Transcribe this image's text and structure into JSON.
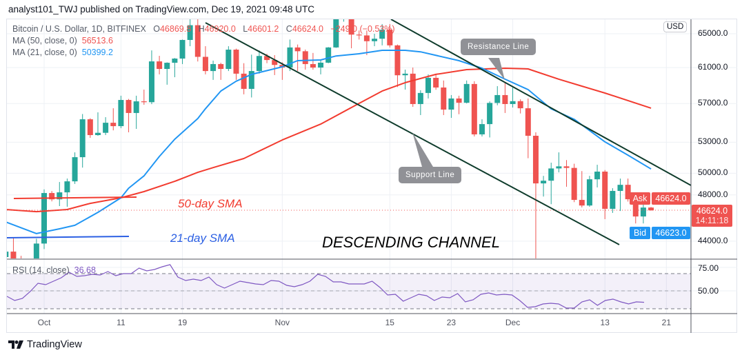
{
  "header": {
    "text": "analyst101_TWJ published on TradingView.com, Dec 19, 2021 09:48 UTC"
  },
  "legend": {
    "symbol": "Bitcoin / U.S. Dollar, 1D, BITFINEX",
    "o_label": "O",
    "o": "46869.8",
    "h_label": "H",
    "h": "46920.0",
    "l_label": "L",
    "l": "46601.2",
    "c_label": "C",
    "c": "46624.0",
    "change": "−249.0 (−0.53%)",
    "ma50_label": "MA (50, close, 0)",
    "ma50_value": "56513.6",
    "ma21_label": "MA (21, close, 0)",
    "ma21_value": "50399.2",
    "rsi_label": "RSI (14, close)",
    "rsi_value": "36.68"
  },
  "price_axis": {
    "currency": "USD",
    "labels": [
      "65000.0",
      "61000.0",
      "57000.0",
      "53000.0",
      "50000.0",
      "48000.0",
      "44000.0"
    ],
    "ask_label": "Ask",
    "ask_value": "46624.0",
    "last_value": "46624.0",
    "countdown": "14:11:18",
    "bid_label": "Bid",
    "bid_value": "46623.0"
  },
  "rsi_axis": {
    "labels": [
      "75.00",
      "50.00"
    ]
  },
  "time_axis": {
    "labels": [
      {
        "text": "Oct",
        "date": "2021-10-01"
      },
      {
        "text": "11",
        "date": "2021-10-11"
      },
      {
        "text": "19",
        "date": "2021-10-19"
      },
      {
        "text": "Nov",
        "date": "2021-11-01"
      },
      {
        "text": "15",
        "date": "2021-11-15"
      },
      {
        "text": "23",
        "date": "2021-11-23"
      },
      {
        "text": "Dec",
        "date": "2021-12-01"
      },
      {
        "text": "13",
        "date": "2021-12-13"
      },
      {
        "text": "21",
        "date": "2021-12-21"
      }
    ]
  },
  "annotations": {
    "sma50_text": "50-day SMA",
    "sma21_text": "21-day SMA",
    "channel_text": "DESCENDING CHANNEL",
    "resistance_text": "Resistance Line",
    "support_text": "Support Line"
  },
  "footer": {
    "brand": "TradingView"
  },
  "colors": {
    "up": "#26a69a",
    "down": "#ef5350",
    "ma50": "#f23b2f",
    "ma21": "#2196f3",
    "rsi": "#7e57c2",
    "trendline": "#0e3b2b",
    "bid": "#2196f3"
  },
  "chart_data": {
    "type": "candlestick",
    "scale": "log",
    "ylim": [
      42000,
      66700
    ],
    "grid": true,
    "columns": [
      "date",
      "open",
      "high",
      "low",
      "close"
    ],
    "candles": [
      [
        "2021-09-26",
        42700,
        43200,
        42650,
        43140
      ],
      [
        "2021-09-27",
        43140,
        44300,
        41000,
        42000
      ],
      [
        "2021-09-28",
        42000,
        42800,
        40800,
        41000
      ],
      [
        "2021-09-29",
        41000,
        42500,
        40700,
        41500
      ],
      [
        "2021-09-30",
        41500,
        44200,
        41300,
        43800
      ],
      [
        "2021-10-01",
        43800,
        48500,
        43350,
        48170
      ],
      [
        "2021-10-02",
        48170,
        48350,
        47420,
        47600
      ],
      [
        "2021-10-03",
        47600,
        49180,
        47000,
        48230
      ],
      [
        "2021-10-04",
        48230,
        49500,
        46940,
        49240
      ],
      [
        "2021-10-05",
        49240,
        52000,
        49000,
        51530
      ],
      [
        "2021-10-06",
        51530,
        55890,
        50530,
        55340
      ],
      [
        "2021-10-07",
        55340,
        55450,
        53440,
        53720
      ],
      [
        "2021-10-08",
        53720,
        56070,
        53650,
        53950
      ],
      [
        "2021-10-09",
        53950,
        55560,
        53720,
        54980
      ],
      [
        "2021-10-10",
        54980,
        56500,
        54200,
        54630
      ],
      [
        "2021-10-11",
        54630,
        57850,
        54420,
        57390
      ],
      [
        "2021-10-12",
        57390,
        57500,
        54000,
        56000
      ],
      [
        "2021-10-13",
        56000,
        57850,
        54350,
        57240
      ],
      [
        "2021-10-14",
        57240,
        58520,
        56870,
        57150
      ],
      [
        "2021-10-15",
        57150,
        63000,
        56940,
        61710
      ],
      [
        "2021-10-16",
        61710,
        62360,
        60220,
        60840
      ],
      [
        "2021-10-17",
        60840,
        61600,
        59060,
        61550
      ],
      [
        "2021-10-18",
        61550,
        62100,
        59900,
        62040
      ],
      [
        "2021-10-19",
        62040,
        64300,
        61400,
        64250
      ],
      [
        "2021-10-20",
        64250,
        66800,
        63500,
        66060
      ],
      [
        "2021-10-21",
        66060,
        66800,
        61700,
        62240
      ],
      [
        "2021-10-22",
        62240,
        63500,
        60220,
        60600
      ],
      [
        "2021-10-23",
        60600,
        61800,
        59600,
        61400
      ],
      [
        "2021-10-24",
        61400,
        61550,
        59600,
        60840
      ],
      [
        "2021-10-25",
        60840,
        63500,
        60600,
        63090
      ],
      [
        "2021-10-26",
        63090,
        63200,
        59600,
        60300
      ],
      [
        "2021-10-27",
        60300,
        61500,
        58000,
        58600
      ],
      [
        "2021-10-28",
        58600,
        62500,
        57660,
        60600
      ],
      [
        "2021-10-29",
        60600,
        63000,
        60300,
        62340
      ],
      [
        "2021-10-30",
        62340,
        62600,
        61500,
        61870
      ],
      [
        "2021-10-31",
        61870,
        62440,
        60140,
        61300
      ],
      [
        "2021-11-01",
        61300,
        61600,
        59600,
        61000
      ],
      [
        "2021-11-02",
        61000,
        64300,
        60600,
        63350
      ],
      [
        "2021-11-03",
        63350,
        63700,
        60600,
        62900
      ],
      [
        "2021-11-04",
        62900,
        63100,
        60760,
        61400
      ],
      [
        "2021-11-05",
        61400,
        62700,
        60760,
        61000
      ],
      [
        "2021-11-06",
        61000,
        61870,
        60220,
        61560
      ],
      [
        "2021-11-07",
        61560,
        63400,
        61500,
        63350
      ],
      [
        "2021-11-08",
        63350,
        67500,
        63300,
        67000
      ],
      [
        "2021-11-09",
        67000,
        68500,
        66500,
        67500
      ],
      [
        "2021-11-10",
        67500,
        68700,
        63250,
        64900
      ],
      [
        "2021-11-11",
        64900,
        65400,
        64300,
        64800
      ],
      [
        "2021-11-12",
        64800,
        65400,
        62440,
        64100
      ],
      [
        "2021-11-13",
        64100,
        65000,
        63500,
        64400
      ],
      [
        "2021-11-14",
        64400,
        66200,
        63600,
        65500
      ],
      [
        "2021-11-15",
        65500,
        66200,
        63350,
        63600
      ],
      [
        "2021-11-16",
        63600,
        63700,
        58800,
        60120
      ],
      [
        "2021-11-17",
        60120,
        60760,
        58520,
        60300
      ],
      [
        "2021-11-18",
        60300,
        61000,
        56650,
        56950
      ],
      [
        "2021-11-19",
        56950,
        58450,
        55780,
        58150
      ],
      [
        "2021-11-20",
        58150,
        60220,
        57550,
        59830
      ],
      [
        "2021-11-21",
        59830,
        60300,
        58500,
        58750
      ],
      [
        "2021-11-22",
        58750,
        59530,
        55780,
        56360
      ],
      [
        "2021-11-23",
        56360,
        57920,
        55490,
        57550
      ],
      [
        "2021-11-24",
        57550,
        57850,
        55870,
        57090
      ],
      [
        "2021-11-25",
        57090,
        59530,
        57020,
        59140
      ],
      [
        "2021-11-26",
        59140,
        59450,
        53580,
        53790
      ],
      [
        "2021-11-27",
        53790,
        55340,
        53580,
        54840
      ],
      [
        "2021-11-28",
        54840,
        57240,
        53480,
        57070
      ],
      [
        "2021-11-29",
        57070,
        58900,
        56820,
        57920
      ],
      [
        "2021-11-30",
        57920,
        59290,
        56000,
        56950
      ],
      [
        "2021-12-01",
        56950,
        58750,
        56580,
        57260
      ],
      [
        "2021-12-02",
        57260,
        57460,
        55950,
        56500
      ],
      [
        "2021-12-03",
        56500,
        57550,
        51430,
        53650
      ],
      [
        "2021-12-04",
        53650,
        54000,
        42000,
        49050
      ],
      [
        "2021-12-05",
        49050,
        49750,
        47850,
        49300
      ],
      [
        "2021-12-06",
        49300,
        51000,
        47170,
        50450
      ],
      [
        "2021-12-07",
        50450,
        52000,
        50080,
        50650
      ],
      [
        "2021-12-08",
        50650,
        51250,
        48740,
        50500
      ],
      [
        "2021-12-09",
        50500,
        50900,
        47350,
        47550
      ],
      [
        "2021-12-10",
        47550,
        50200,
        46880,
        47050
      ],
      [
        "2021-12-11",
        47050,
        49750,
        46940,
        49430
      ],
      [
        "2021-12-12",
        49430,
        50800,
        48680,
        50150
      ],
      [
        "2021-12-13",
        50150,
        50300,
        45860,
        46760
      ],
      [
        "2021-12-14",
        46760,
        48610,
        46400,
        48360
      ],
      [
        "2021-12-15",
        48360,
        49500,
        46570,
        48920
      ],
      [
        "2021-12-16",
        48920,
        49500,
        47400,
        47610
      ],
      [
        "2021-12-17",
        47610,
        47990,
        45490,
        46090
      ],
      [
        "2021-12-18",
        46090,
        47500,
        45490,
        46870
      ],
      [
        "2021-12-19",
        46869.8,
        46920.0,
        46601.2,
        46624.0
      ]
    ],
    "last_price": 46624.0,
    "series": [
      {
        "name": "MA (50, close, 0)",
        "points": [
          [
            "2021-09-26",
            46700
          ],
          [
            "2021-09-30",
            46510
          ],
          [
            "2021-10-04",
            46700
          ],
          [
            "2021-10-07",
            47240
          ],
          [
            "2021-10-11",
            47740
          ],
          [
            "2021-10-14",
            48300
          ],
          [
            "2021-10-18",
            49240
          ],
          [
            "2021-10-21",
            50080
          ],
          [
            "2021-10-23",
            50530
          ],
          [
            "2021-10-27",
            51400
          ],
          [
            "2021-11-01",
            53230
          ],
          [
            "2021-11-06",
            54840
          ],
          [
            "2021-11-11",
            57020
          ],
          [
            "2021-11-14",
            58360
          ],
          [
            "2021-11-17",
            59290
          ],
          [
            "2021-11-21",
            60220
          ],
          [
            "2021-11-25",
            60760
          ],
          [
            "2021-11-30",
            60920
          ],
          [
            "2021-12-03",
            60840
          ],
          [
            "2021-12-07",
            59680
          ],
          [
            "2021-12-10",
            58900
          ],
          [
            "2021-12-13",
            58140
          ],
          [
            "2021-12-19",
            56513.6
          ]
        ]
      },
      {
        "name": "MA (21, close, 0)",
        "points": [
          [
            "2021-09-26",
            45620
          ],
          [
            "2021-09-30",
            44630
          ],
          [
            "2021-10-03",
            45030
          ],
          [
            "2021-10-05",
            45330
          ],
          [
            "2021-10-08",
            46450
          ],
          [
            "2021-10-11",
            47740
          ],
          [
            "2021-10-12",
            48610
          ],
          [
            "2021-10-14",
            49750
          ],
          [
            "2021-10-16",
            51600
          ],
          [
            "2021-10-18",
            53300
          ],
          [
            "2021-10-21",
            55420
          ],
          [
            "2021-10-22",
            56450
          ],
          [
            "2021-10-24",
            58360
          ],
          [
            "2021-10-26",
            59450
          ],
          [
            "2021-10-28",
            60220
          ],
          [
            "2021-11-01",
            61080
          ],
          [
            "2021-11-03",
            61800
          ],
          [
            "2021-11-06",
            61880
          ],
          [
            "2021-11-08",
            62340
          ],
          [
            "2021-11-11",
            62600
          ],
          [
            "2021-11-14",
            63010
          ],
          [
            "2021-11-17",
            63010
          ],
          [
            "2021-11-19",
            62830
          ],
          [
            "2021-11-24",
            61800
          ],
          [
            "2021-11-27",
            60920
          ],
          [
            "2021-11-30",
            59680
          ],
          [
            "2021-12-03",
            58520
          ],
          [
            "2021-12-06",
            56440
          ],
          [
            "2021-12-09",
            55340
          ],
          [
            "2021-12-13",
            53040
          ],
          [
            "2021-12-16",
            51730
          ],
          [
            "2021-12-19",
            50399.2
          ]
        ]
      }
    ],
    "rsi": {
      "name": "RSI (14, close)",
      "levels": [
        70,
        50,
        30
      ],
      "values": [
        43.6,
        38.8,
        41.2,
        49.2,
        58.8,
        57.2,
        61.2,
        65.2,
        71.6,
        66.8,
        67.6,
        69.2,
        68.4,
        72.4,
        67.6,
        70.0,
        70.0,
        76.4,
        73.2,
        74.8,
        78.0,
        80.4,
        66.0,
        62.0,
        63.6,
        62.0,
        66.0,
        57.2,
        53.2,
        57.2,
        61.2,
        59.6,
        58.0,
        57.2,
        62.0,
        61.2,
        56.4,
        54.8,
        57.2,
        61.2,
        69.2,
        66.8,
        60.4,
        60.4,
        58.0,
        58.0,
        58.0,
        61.2,
        54.0,
        45.2,
        46.0,
        38.0,
        42.0,
        46.0,
        44.4,
        38.8,
        42.8,
        42.0,
        46.8,
        37.2,
        39.6,
        46.0,
        47.6,
        45.2,
        46.0,
        45.2,
        38.8,
        30.8,
        31.6,
        34.8,
        35.6,
        34.8,
        30.0,
        30.0,
        37.2,
        39.6,
        33.2,
        38.8,
        40.4,
        37.2,
        34.8,
        37.2,
        36.68
      ]
    }
  }
}
